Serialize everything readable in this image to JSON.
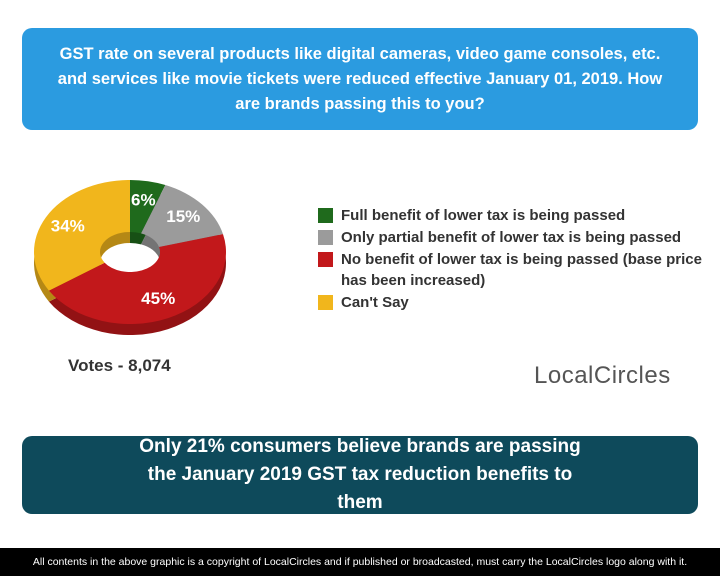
{
  "chart_data": {
    "type": "pie",
    "title": "GST rate on several products like digital cameras, video game consoles, etc. and services like movie tickets were reduced effective January 01, 2019. How are brands passing this to you?",
    "categories": [
      "Full benefit of lower tax is being passed",
      "Only partial benefit of lower tax is being passed",
      "No benefit of lower tax is being passed (base price has been increased)",
      "Can't Say"
    ],
    "values": [
      6,
      15,
      45,
      34
    ],
    "value_labels": [
      "6%",
      "15%",
      "45%",
      "34%"
    ],
    "colors": [
      "#1f6a1c",
      "#9b9b9b",
      "#c2181b",
      "#f1b61c"
    ],
    "votes_label": "Votes - 8,074",
    "logo": "LocalCircles",
    "conclusion": "Only 21% consumers believe brands are passing the January 2019 GST tax reduction benefits to them",
    "footer": "All contents in the above graphic is a copyright of LocalCircles and if published or broadcasted, must carry the LocalCircles logo along with it."
  }
}
